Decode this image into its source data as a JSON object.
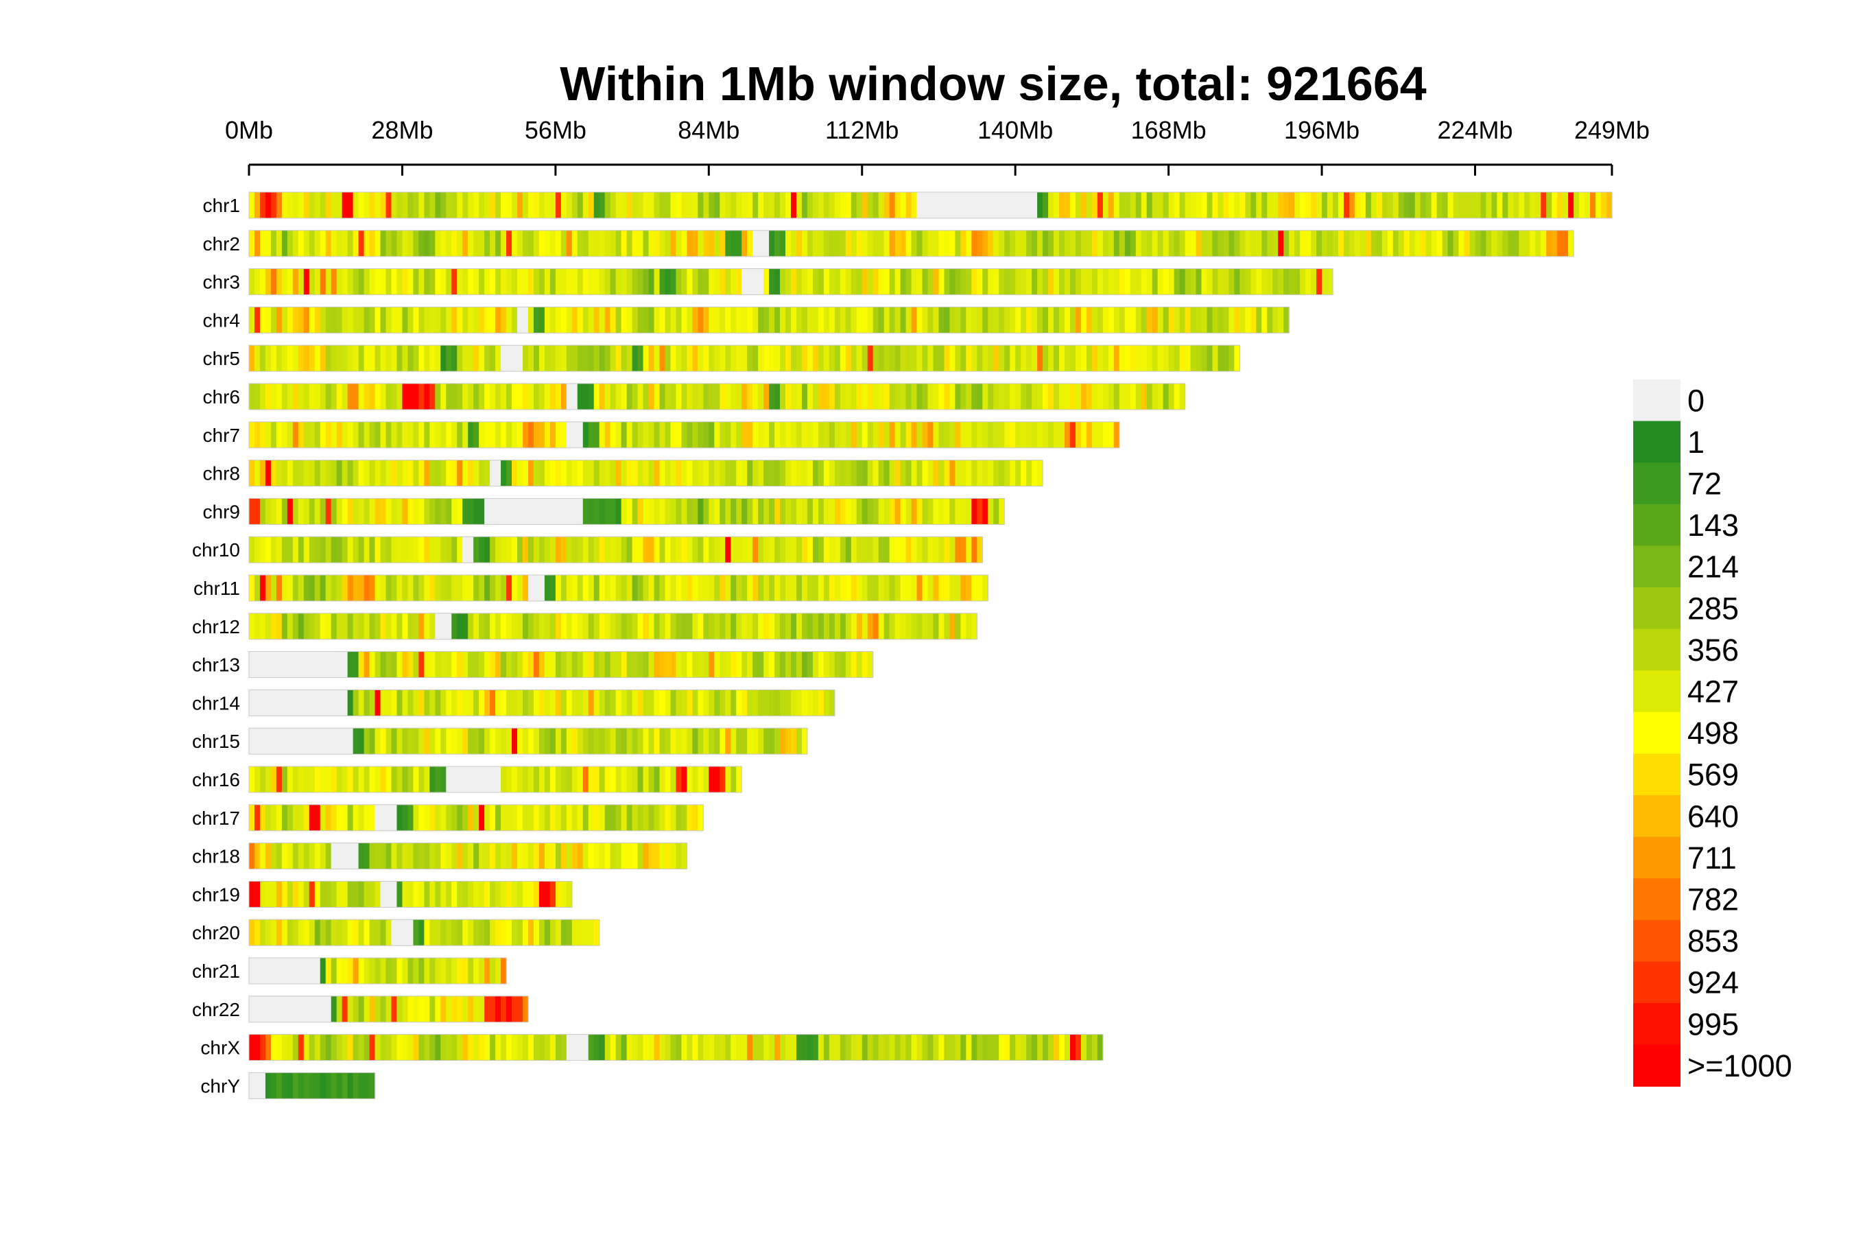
{
  "chart_data": {
    "type": "heatmap",
    "title": "Within 1Mb window size, total: 921664",
    "xlim_mb": [
      0,
      249
    ],
    "x_ticks": [
      "0Mb",
      "28Mb",
      "56Mb",
      "84Mb",
      "112Mb",
      "140Mb",
      "168Mb",
      "196Mb",
      "224Mb",
      "249Mb"
    ],
    "x_tick_values_mb": [
      0,
      28,
      56,
      84,
      112,
      140,
      168,
      196,
      224,
      249
    ],
    "legend": {
      "labels": [
        "0",
        "1",
        "72",
        "143",
        "214",
        "285",
        "356",
        "427",
        "498",
        "569",
        "640",
        "711",
        "782",
        "853",
        "924",
        "995",
        ">=1000"
      ],
      "colors": [
        "#f0f0f0",
        "#228b22",
        "#3c9a1e",
        "#5aa81a",
        "#7ab816",
        "#9cc812",
        "#bcd80c",
        "#dcea06",
        "#ffff00",
        "#ffdd00",
        "#ffbb00",
        "#ff9900",
        "#ff7700",
        "#ff5500",
        "#ff3300",
        "#ff1100",
        "#ff0000"
      ]
    },
    "chromosomes": [
      {
        "name": "chr1",
        "length_mb": 249,
        "gaps": [
          [
            122,
            144
          ]
        ],
        "low": [
          [
            144,
            146
          ],
          [
            63,
            65
          ]
        ],
        "hot": [
          [
            2,
            5
          ],
          [
            17,
            19
          ],
          [
            25,
            26
          ],
          [
            56,
            57
          ],
          [
            99,
            100
          ],
          [
            155,
            156
          ],
          [
            200,
            201
          ],
          [
            236,
            237
          ],
          [
            241,
            242
          ]
        ]
      },
      {
        "name": "chr2",
        "length_mb": 242,
        "gaps": [
          [
            92,
            95
          ]
        ],
        "low": [
          [
            87,
            90
          ],
          [
            95,
            98
          ]
        ],
        "hot": [
          [
            20,
            21
          ],
          [
            47,
            48
          ],
          [
            188,
            189
          ]
        ]
      },
      {
        "name": "chr3",
        "length_mb": 198,
        "gaps": [
          [
            90,
            94
          ]
        ],
        "low": [
          [
            95,
            97
          ],
          [
            75,
            78
          ]
        ],
        "hot": [
          [
            37,
            38
          ],
          [
            10,
            11
          ],
          [
            195,
            196
          ]
        ]
      },
      {
        "name": "chr4",
        "length_mb": 190,
        "gaps": [
          [
            49,
            51
          ]
        ],
        "low": [
          [
            52,
            54
          ]
        ],
        "hot": [
          [
            1,
            2
          ]
        ]
      },
      {
        "name": "chr5",
        "length_mb": 181,
        "gaps": [
          [
            46,
            50
          ]
        ],
        "low": [
          [
            35,
            38
          ],
          [
            70,
            72
          ]
        ],
        "hot": [
          [
            113,
            114
          ]
        ]
      },
      {
        "name": "chr6",
        "length_mb": 171,
        "gaps": [
          [
            58,
            60
          ]
        ],
        "low": [
          [
            60,
            63
          ],
          [
            95,
            97
          ]
        ],
        "hot": [
          [
            28,
            34
          ]
        ]
      },
      {
        "name": "chr7",
        "length_mb": 159,
        "gaps": [
          [
            58,
            61
          ]
        ],
        "low": [
          [
            61,
            64
          ],
          [
            40,
            42
          ]
        ],
        "hot": [
          [
            150,
            151
          ]
        ]
      },
      {
        "name": "chr8",
        "length_mb": 145,
        "gaps": [
          [
            44,
            46
          ]
        ],
        "low": [
          [
            46,
            48
          ]
        ],
        "hot": [
          [
            3,
            4
          ]
        ]
      },
      {
        "name": "chr9",
        "length_mb": 138,
        "gaps": [
          [
            43,
            61
          ]
        ],
        "low": [
          [
            39,
            43
          ],
          [
            61,
            68
          ]
        ],
        "hot": [
          [
            0,
            2
          ],
          [
            7,
            8
          ],
          [
            14,
            15
          ],
          [
            132,
            135
          ]
        ]
      },
      {
        "name": "chr10",
        "length_mb": 134,
        "gaps": [
          [
            39,
            41
          ]
        ],
        "low": [
          [
            41,
            44
          ]
        ],
        "hot": [
          [
            87,
            88
          ]
        ]
      },
      {
        "name": "chr11",
        "length_mb": 135,
        "gaps": [
          [
            51,
            54
          ]
        ],
        "low": [
          [
            54,
            56
          ]
        ],
        "hot": [
          [
            2,
            3
          ],
          [
            47,
            48
          ]
        ]
      },
      {
        "name": "chr12",
        "length_mb": 133,
        "gaps": [
          [
            34,
            37
          ]
        ],
        "low": [
          [
            37,
            40
          ]
        ],
        "hot": []
      },
      {
        "name": "chr13",
        "length_mb": 114,
        "gaps": [
          [
            0,
            18
          ]
        ],
        "low": [
          [
            18,
            20
          ]
        ],
        "hot": [
          [
            31,
            32
          ]
        ]
      },
      {
        "name": "chr14",
        "length_mb": 107,
        "gaps": [
          [
            0,
            18
          ]
        ],
        "low": [
          [
            18,
            19
          ]
        ],
        "hot": [
          [
            23,
            24
          ]
        ]
      },
      {
        "name": "chr15",
        "length_mb": 102,
        "gaps": [
          [
            0,
            19
          ]
        ],
        "low": [
          [
            19,
            21
          ]
        ],
        "hot": [
          [
            48,
            49
          ]
        ]
      },
      {
        "name": "chr16",
        "length_mb": 90,
        "gaps": [
          [
            36,
            46
          ]
        ],
        "low": [
          [
            33,
            36
          ]
        ],
        "hot": [
          [
            5,
            6
          ],
          [
            78,
            80
          ],
          [
            84,
            87
          ]
        ]
      },
      {
        "name": "chr17",
        "length_mb": 83,
        "gaps": [
          [
            23,
            27
          ]
        ],
        "low": [
          [
            27,
            30
          ]
        ],
        "hot": [
          [
            1,
            2
          ],
          [
            11,
            13
          ],
          [
            42,
            43
          ]
        ]
      },
      {
        "name": "chr18",
        "length_mb": 80,
        "gaps": [
          [
            15,
            20
          ]
        ],
        "low": [
          [
            20,
            22
          ]
        ],
        "hot": []
      },
      {
        "name": "chr19",
        "length_mb": 59,
        "gaps": [
          [
            24,
            27
          ]
        ],
        "low": [
          [
            27,
            28
          ]
        ],
        "hot": [
          [
            0,
            2
          ],
          [
            11,
            12
          ],
          [
            53,
            56
          ]
        ]
      },
      {
        "name": "chr20",
        "length_mb": 64,
        "gaps": [
          [
            26,
            30
          ]
        ],
        "low": [
          [
            30,
            32
          ]
        ],
        "hot": []
      },
      {
        "name": "chr21",
        "length_mb": 47,
        "gaps": [
          [
            0,
            13
          ]
        ],
        "low": [
          [
            13,
            14
          ]
        ],
        "hot": []
      },
      {
        "name": "chr22",
        "length_mb": 51,
        "gaps": [
          [
            0,
            15
          ]
        ],
        "low": [
          [
            15,
            16
          ]
        ],
        "hot": [
          [
            17,
            18
          ],
          [
            26,
            27
          ],
          [
            43,
            50
          ]
        ]
      },
      {
        "name": "chrX",
        "length_mb": 156,
        "gaps": [
          [
            58,
            62
          ]
        ],
        "low": [
          [
            62,
            65
          ],
          [
            100,
            104
          ]
        ],
        "hot": [
          [
            0,
            3
          ],
          [
            9,
            10
          ],
          [
            22,
            23
          ],
          [
            150,
            152
          ]
        ]
      },
      {
        "name": "chrY",
        "length_mb": 23,
        "gaps": [
          [
            0,
            3
          ]
        ],
        "low": [
          [
            3,
            23
          ]
        ],
        "hot": []
      }
    ]
  }
}
